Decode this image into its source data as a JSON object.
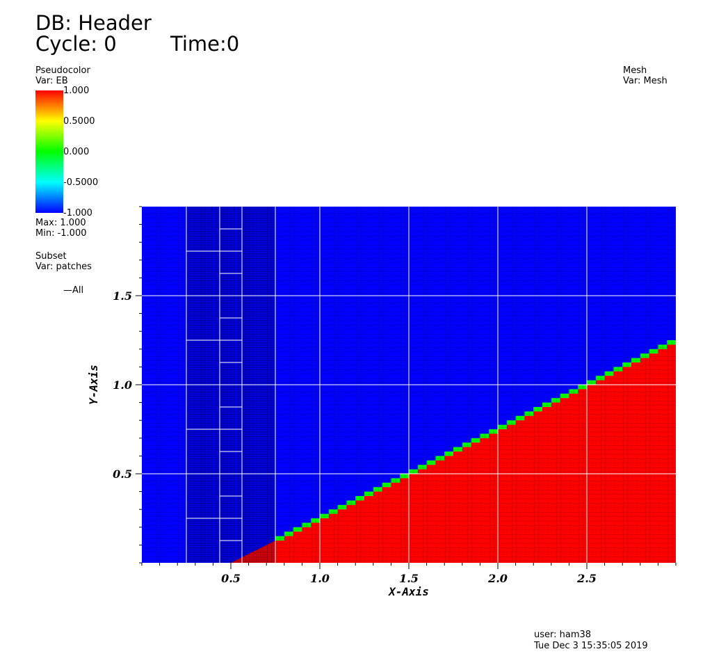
{
  "header": {
    "db": "DB: Header",
    "cycle": "Cycle: 0",
    "time": "Time:0"
  },
  "legend_pseudocolor": {
    "title": "Pseudocolor",
    "var": "Var: EB",
    "ticks": [
      "1.000",
      "0.5000",
      "0.000",
      "-0.5000",
      "-1.000"
    ],
    "max": "Max:  1.000",
    "min": "Min: -1.000",
    "colors": [
      "#ff0000",
      "#ffff00",
      "#00ff00",
      "#00ffff",
      "#0000ff"
    ]
  },
  "legend_subset": {
    "title": "Subset",
    "var": "Var: patches",
    "entry": "All"
  },
  "legend_mesh": {
    "title": "Mesh",
    "var": "Var: Mesh"
  },
  "footer": {
    "user": "user: ham38",
    "date": "Tue Dec  3 15:35:05 2019"
  },
  "chart_data": {
    "type": "heatmap",
    "title": "",
    "xlabel": "X-Axis",
    "ylabel": "Y-Axis",
    "xlim": [
      0,
      3.0
    ],
    "ylim": [
      0,
      2.0
    ],
    "x_ticks": [
      0.5,
      1.0,
      1.5,
      2.0,
      2.5
    ],
    "y_ticks": [
      0.5,
      1.0,
      1.5
    ],
    "x_tick_labels": [
      "0.5",
      "1.0",
      "1.5",
      "2.0",
      "2.5"
    ],
    "y_tick_labels": [
      "0.5",
      "1.0",
      "1.5"
    ],
    "field": "EB",
    "region_upper_value": -1.0,
    "region_lower_value": 1.0,
    "interface_value": 0.0,
    "interface_line_slope": 0.5,
    "interface_line_intercept": -0.25,
    "colors": {
      "upper": "#0000ff",
      "lower": "#ff0000",
      "interface": "#00ff00",
      "patch_lines": "#ffffff"
    },
    "refined_patches_x": [
      0.25,
      0.75
    ],
    "finest_patch_x": [
      0.4375,
      0.5625
    ],
    "patch_boundaries_x": [
      0.25,
      0.4375,
      0.5625,
      0.75,
      1.0,
      1.5,
      2.0,
      2.5
    ],
    "patch_boundaries_y": [
      0.5,
      1.0,
      1.5
    ]
  }
}
